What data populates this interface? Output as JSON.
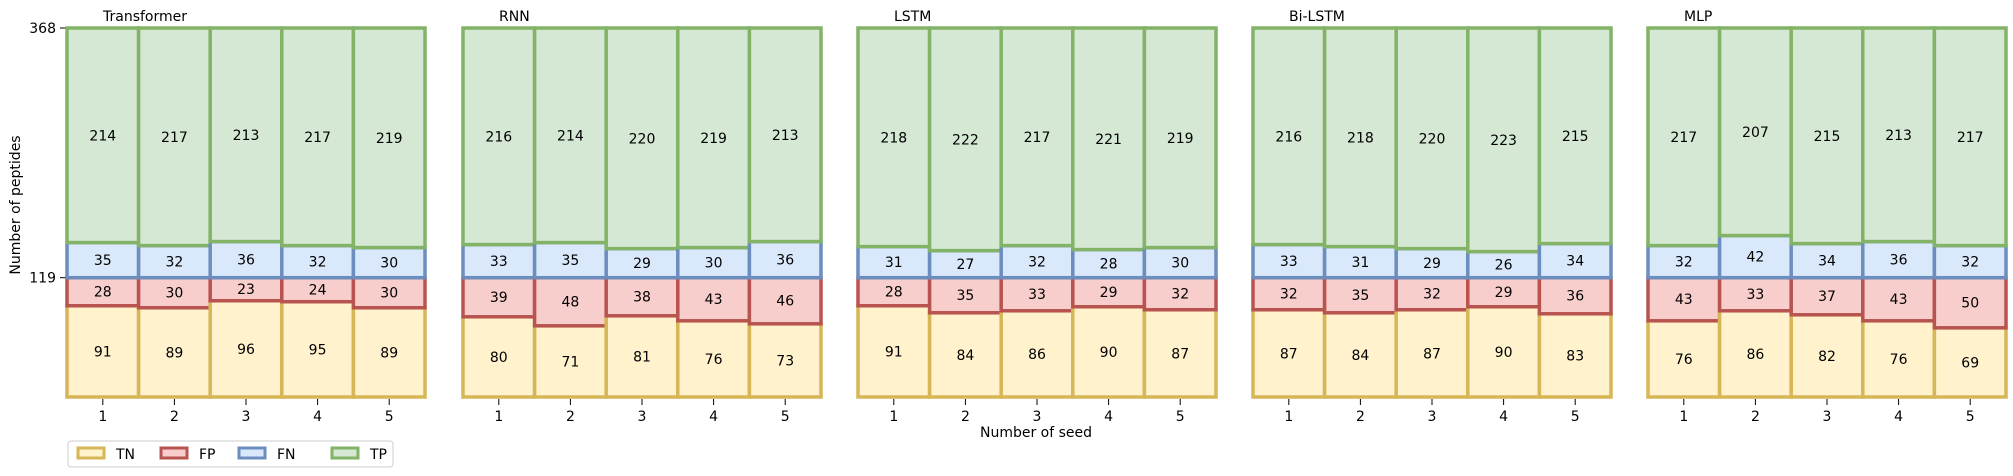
{
  "chart_data": {
    "type": "bar",
    "stacked": true,
    "ylabel": "Number of peptides",
    "xlabel": "Number of seed",
    "yticks": [
      119,
      368
    ],
    "ylim": [
      0,
      368
    ],
    "categories": [
      "1",
      "2",
      "3",
      "4",
      "5"
    ],
    "legend": {
      "placement": "bottom-left",
      "entries": [
        "TN",
        "FP",
        "FN",
        "TP"
      ]
    },
    "colors": {
      "TN": {
        "fill": "#fff2cc",
        "edge": "#d6b656"
      },
      "FP": {
        "fill": "#f8cecc",
        "edge": "#b85450"
      },
      "FN": {
        "fill": "#dae8fc",
        "edge": "#6c8ebf"
      },
      "TP": {
        "fill": "#d5e8d4",
        "edge": "#82b366"
      }
    },
    "panels": [
      {
        "title": "Transformer",
        "series": [
          {
            "name": "TN",
            "values": [
              91,
              89,
              96,
              95,
              89
            ]
          },
          {
            "name": "FP",
            "values": [
              28,
              30,
              23,
              24,
              30
            ]
          },
          {
            "name": "FN",
            "values": [
              35,
              32,
              36,
              32,
              30
            ]
          },
          {
            "name": "TP",
            "values": [
              214,
              217,
              213,
              217,
              219
            ]
          }
        ]
      },
      {
        "title": "RNN",
        "series": [
          {
            "name": "TN",
            "values": [
              80,
              71,
              81,
              76,
              73
            ]
          },
          {
            "name": "FP",
            "values": [
              39,
              48,
              38,
              43,
              46
            ]
          },
          {
            "name": "FN",
            "values": [
              33,
              35,
              29,
              30,
              36
            ]
          },
          {
            "name": "TP",
            "values": [
              216,
              214,
              220,
              219,
              213
            ]
          }
        ]
      },
      {
        "title": "LSTM",
        "series": [
          {
            "name": "TN",
            "values": [
              91,
              84,
              86,
              90,
              87
            ]
          },
          {
            "name": "FP",
            "values": [
              28,
              35,
              33,
              29,
              32
            ]
          },
          {
            "name": "FN",
            "values": [
              31,
              27,
              32,
              28,
              30
            ]
          },
          {
            "name": "TP",
            "values": [
              218,
              222,
              217,
              221,
              219
            ]
          }
        ]
      },
      {
        "title": "Bi-LSTM",
        "series": [
          {
            "name": "TN",
            "values": [
              87,
              84,
              87,
              90,
              83
            ]
          },
          {
            "name": "FP",
            "values": [
              32,
              35,
              32,
              29,
              36
            ]
          },
          {
            "name": "FN",
            "values": [
              33,
              31,
              29,
              26,
              34
            ]
          },
          {
            "name": "TP",
            "values": [
              216,
              218,
              220,
              223,
              215
            ]
          }
        ]
      },
      {
        "title": "MLP",
        "series": [
          {
            "name": "TN",
            "values": [
              76,
              86,
              82,
              76,
              69
            ]
          },
          {
            "name": "FP",
            "values": [
              43,
              33,
              37,
              43,
              50
            ]
          },
          {
            "name": "FN",
            "values": [
              32,
              42,
              34,
              36,
              32
            ]
          },
          {
            "name": "TP",
            "values": [
              217,
              207,
              215,
              213,
              217
            ]
          }
        ]
      }
    ]
  }
}
